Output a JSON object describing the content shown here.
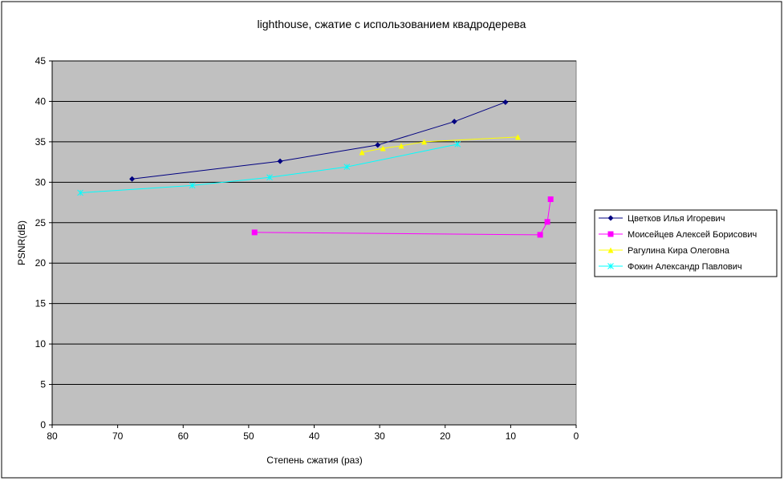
{
  "chart_data": {
    "type": "line",
    "title": "lighthouse, сжатие с использованием квадродерева",
    "x_label": "Степень сжатия (раз)",
    "y_label": "PSNR(dB)",
    "xlim": [
      80,
      0
    ],
    "xticks": [
      80,
      70,
      60,
      50,
      40,
      30,
      20,
      10,
      0
    ],
    "ylim": [
      0,
      45
    ],
    "yticks": [
      0,
      5,
      10,
      15,
      20,
      25,
      30,
      35,
      40,
      45
    ],
    "grid": true,
    "legend": "right",
    "series": [
      {
        "name": "Цветков Илья Игоревич",
        "color": "#000080",
        "marker": "diamond",
        "x": [
          67.8,
          45.2,
          30.3,
          18.6,
          10.8
        ],
        "values": [
          30.4,
          32.6,
          34.6,
          37.5,
          39.9
        ]
      },
      {
        "name": "Моисейцев Алексей Борисович",
        "color": "#ff00ff",
        "marker": "square",
        "x": [
          49.1,
          5.5,
          4.4,
          3.9
        ],
        "values": [
          23.8,
          23.5,
          25.1,
          27.9
        ]
      },
      {
        "name": "Рагулина Кира Олеговна",
        "color": "#ffff00",
        "marker": "triangle",
        "x": [
          32.7,
          29.5,
          26.7,
          23.2,
          8.9
        ],
        "values": [
          33.7,
          34.2,
          34.5,
          35.0,
          35.6
        ]
      },
      {
        "name": "Фокин Александр Павлович",
        "color": "#00ffff",
        "marker": "cross",
        "x": [
          75.7,
          58.6,
          46.8,
          35.0,
          18.1
        ],
        "values": [
          28.7,
          29.6,
          30.6,
          31.9,
          34.7
        ]
      }
    ]
  }
}
